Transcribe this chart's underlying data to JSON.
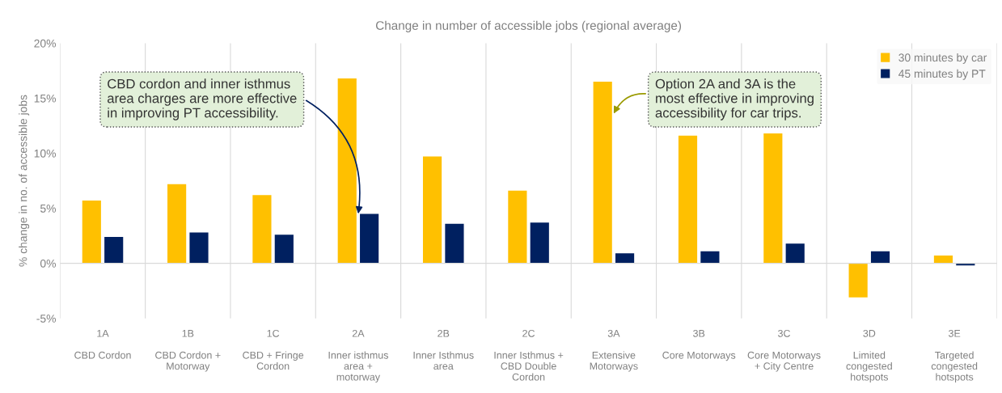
{
  "chart_data": {
    "type": "bar",
    "title": "Change in number of accessible jobs (regional average)",
    "ylabel": "% change in no. of accessible jobs",
    "categories": [
      "1A\n\nCBD Cordon",
      "1B\n\nCBD Cordon +\nMotorway",
      "1C\n\nCBD + Fringe\nCordon",
      "2A\n\nInner isthmus\narea +\nmotorway",
      "2B\n\nInner Isthmus\narea",
      "2C\n\nInner Isthmus +\nCBD Double\nCordon",
      "3A\n\nExtensive\nMotorways",
      "3B\n\nCore Motorways",
      "3C\n\nCore Motorways\n+ City Centre",
      "3D\n\nLimited\ncongested\nhotspots",
      "3E\n\nTargeted\ncongested\nhotspots"
    ],
    "series": [
      {
        "name": "30 minutes by car",
        "color": "#ffc000",
        "values": [
          5.7,
          7.2,
          6.2,
          16.8,
          9.7,
          6.6,
          16.5,
          11.6,
          11.8,
          -3.1,
          0.7
        ]
      },
      {
        "name": "45 minutes by PT",
        "color": "#002060",
        "values": [
          2.4,
          2.8,
          2.6,
          4.5,
          3.6,
          3.7,
          0.9,
          1.1,
          1.8,
          1.1,
          -0.2
        ]
      }
    ],
    "ylim": [
      -5,
      20
    ],
    "yticks": [
      {
        "value": -5,
        "label": "-5%"
      },
      {
        "value": 0,
        "label": "0%"
      },
      {
        "value": 5,
        "label": "5%"
      },
      {
        "value": 10,
        "label": "10%"
      },
      {
        "value": 15,
        "label": "15%"
      },
      {
        "value": 20,
        "label": "20%"
      }
    ],
    "grid": "x",
    "legend": "top right",
    "annotations": [
      {
        "text": "CBD cordon and inner isthmus\narea charges are more effective\nin improving PT accessibility.",
        "x": "2A\n\nInner isthmus\narea +\nmotorway",
        "y": 4.5
      },
      {
        "text": "Option 2A and 3A is the\nmost effective in improving\naccessibility for car trips.",
        "x": "3A\n\nExtensive\nMotorways",
        "y": 13.6
      }
    ]
  }
}
